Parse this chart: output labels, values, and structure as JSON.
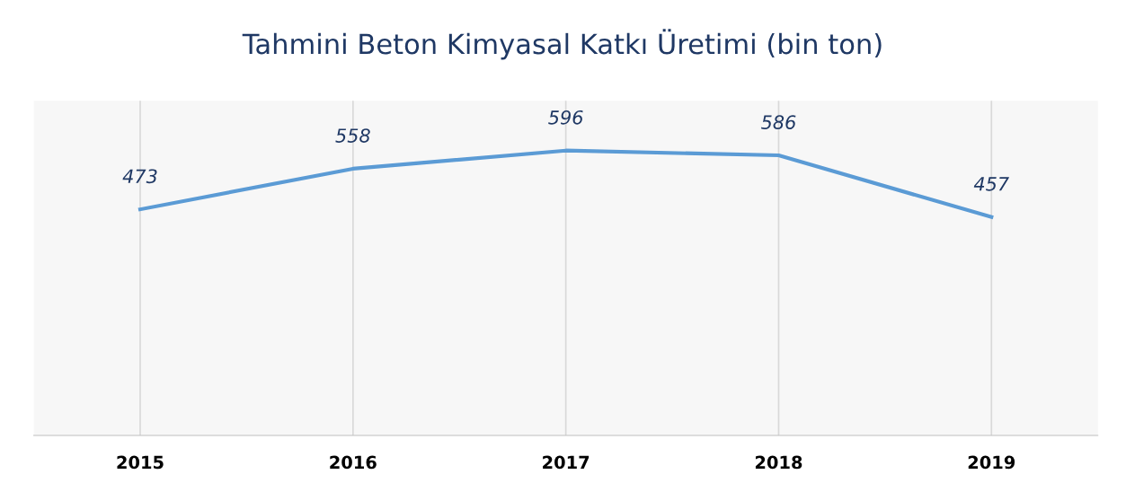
{
  "chart_data": {
    "type": "line",
    "title": "Tahmini Beton Kimyasal Katkı Üretimi (bin ton)",
    "categories": [
      "2015",
      "2016",
      "2017",
      "2018",
      "2019"
    ],
    "series": [
      {
        "color": "#5b9bd5",
        "values": [
          473,
          558,
          596,
          586,
          457
        ]
      }
    ],
    "ylim": [
      0,
      700
    ],
    "data_labels": true,
    "grid": "x",
    "tick_labels": "x",
    "marker": "none",
    "line_style": "solid",
    "legend": false
  }
}
